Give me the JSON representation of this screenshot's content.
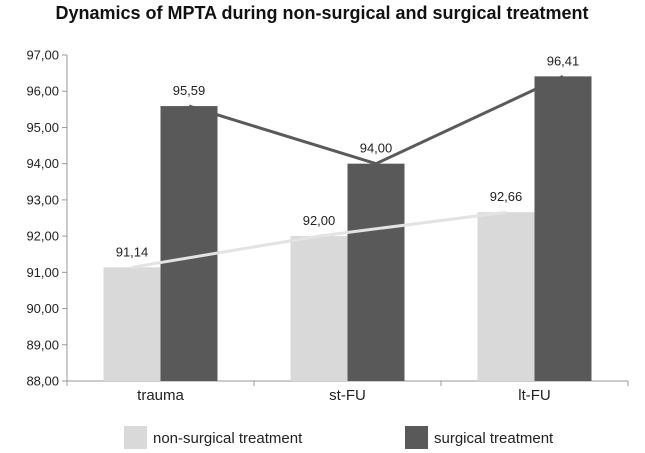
{
  "chart_data": {
    "type": "bar",
    "title": "Dynamics of MPTA during non-surgical and surgical treatment",
    "xlabel": "",
    "ylabel": "",
    "categories": [
      "trauma",
      "st-FU",
      "lt-FU"
    ],
    "ylim": [
      88,
      97
    ],
    "yticks": [
      "88,00",
      "89,00",
      "90,00",
      "91,00",
      "92,00",
      "93,00",
      "94,00",
      "95,00",
      "96,00",
      "97,00"
    ],
    "grid": false,
    "legend_position": "bottom",
    "series": [
      {
        "name": "non-surgical treatment",
        "values": [
          91.14,
          92.0,
          92.66
        ],
        "labels": [
          "91,14",
          "92,00",
          "92,66"
        ],
        "color": "#d9d9d9",
        "line_color": "#e3e3e3"
      },
      {
        "name": "surgical treatment",
        "values": [
          95.59,
          94.0,
          96.41
        ],
        "labels": [
          "95,59",
          "94,00",
          "96,41"
        ],
        "color": "#595959",
        "line_color": "#5a5a5a"
      }
    ],
    "overlay": "line connecting bar tops for each series"
  }
}
